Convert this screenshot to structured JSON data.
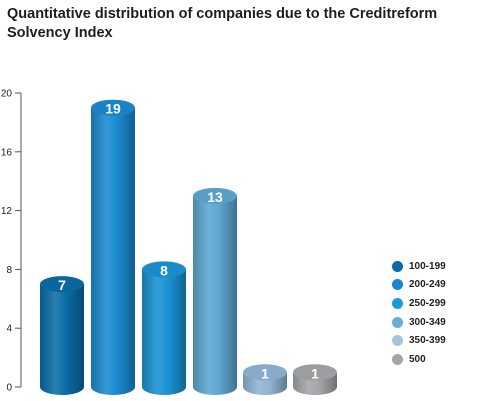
{
  "chart_data": {
    "type": "bar",
    "title": "Quantitative distribution of companies due to the Creditreform Solvency Index",
    "categories": [
      "100-199",
      "200-249",
      "250-299",
      "300-349",
      "350-399",
      "500"
    ],
    "series": [
      {
        "values": [
          7,
          19,
          8,
          13,
          1,
          1
        ]
      }
    ],
    "data_labels": [
      "7",
      "19",
      "8",
      "13",
      "1",
      "1"
    ],
    "yticks": [
      "0",
      "4",
      "8",
      "12",
      "16",
      "20"
    ],
    "ylim": [
      0,
      20
    ],
    "grid": false,
    "legend": {
      "position": "right"
    },
    "legend_entries": [
      "100-199",
      "200-249",
      "250-299",
      "300-349",
      "350-399",
      "500"
    ],
    "colors": [
      "#0a6ca6",
      "#1a86ce",
      "#1b9ad8",
      "#6aaed6",
      "#a2c4dc",
      "#a3a5a8"
    ],
    "bar_colors": [
      "#0a6ca6",
      "#1b8ad0",
      "#1a92d4",
      "#5ea6d2",
      "#8fb4d4",
      "#a3a5a8"
    ]
  }
}
